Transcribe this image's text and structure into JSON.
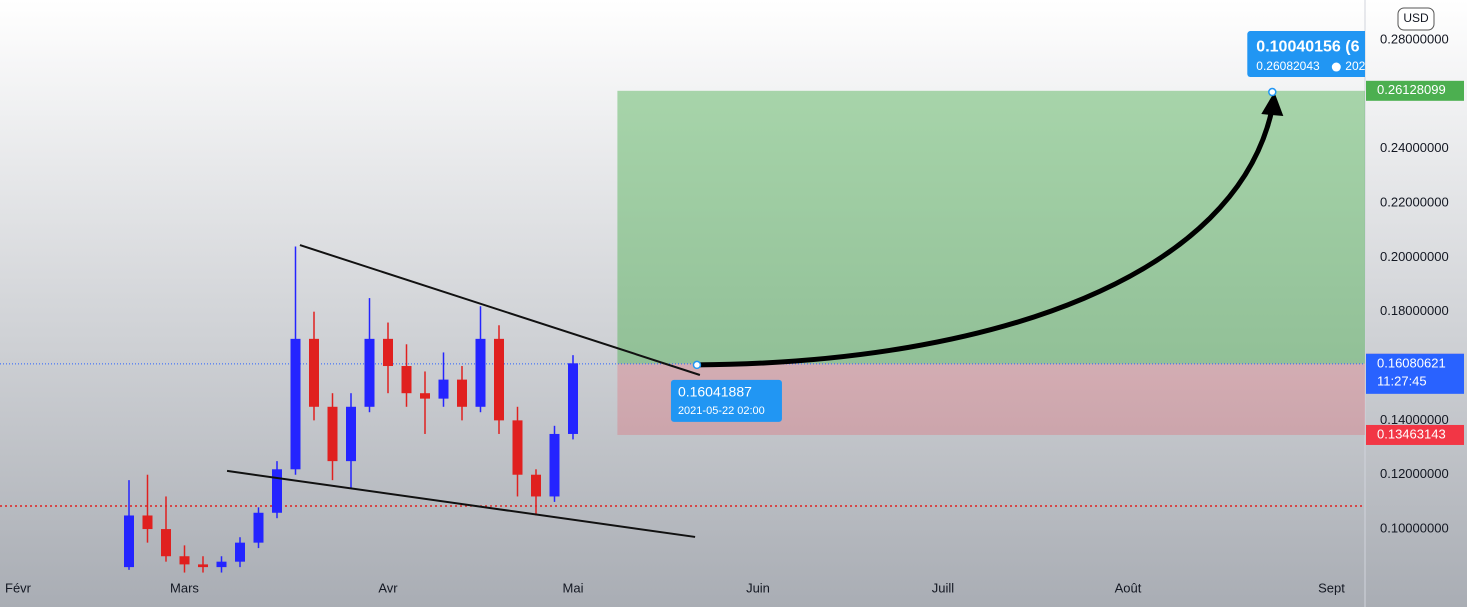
{
  "chart_data": {
    "type": "candlestick",
    "currency": "USD",
    "categories": [
      "Févr",
      null,
      null,
      null,
      null,
      null,
      null,
      null,
      null,
      "Mars",
      null,
      null,
      null,
      null,
      null,
      null,
      null,
      null,
      null,
      null,
      "Avr",
      null,
      null,
      null,
      null,
      null,
      null,
      null,
      null,
      null,
      "Mai",
      null,
      null,
      null,
      null,
      null,
      null,
      null,
      null,
      null,
      "Juin",
      null,
      null,
      null,
      null,
      null,
      null,
      null,
      null,
      null,
      "Juill",
      null,
      null,
      null,
      null,
      null,
      null,
      null,
      null,
      null,
      "Août",
      null,
      null,
      null,
      null,
      null,
      null,
      null,
      null,
      null,
      null,
      "Sept"
    ],
    "open": [
      null,
      null,
      null,
      null,
      null,
      null,
      0.086,
      0.105,
      0.1,
      0.09,
      0.087,
      0.086,
      0.088,
      0.095,
      0.106,
      0.122,
      0.17,
      0.145,
      0.125,
      0.145,
      0.17,
      0.16,
      0.15,
      0.148,
      0.155,
      0.145,
      0.17,
      0.14,
      0.12,
      0.112,
      0.135,
      null,
      null,
      null,
      null,
      null,
      null,
      null,
      null,
      null,
      null,
      null,
      null,
      null,
      null,
      null,
      null,
      null,
      null,
      null,
      null,
      null,
      null,
      null,
      null,
      null,
      null,
      null,
      null,
      null,
      null,
      null,
      null,
      null,
      null,
      null,
      null,
      null,
      null,
      null,
      null,
      null
    ],
    "high": [
      null,
      null,
      null,
      null,
      null,
      null,
      0.118,
      0.12,
      0.112,
      0.094,
      0.09,
      0.09,
      0.097,
      0.108,
      0.125,
      0.204,
      0.18,
      0.15,
      0.15,
      0.185,
      0.176,
      0.168,
      0.158,
      0.165,
      0.16,
      0.182,
      0.175,
      0.145,
      0.122,
      0.138,
      0.164,
      null,
      null,
      null,
      null,
      null,
      null,
      null,
      null,
      null,
      null,
      null,
      null,
      null,
      null,
      null,
      null,
      null,
      null,
      null,
      null,
      null,
      null,
      null,
      null,
      null,
      null,
      null,
      null,
      null,
      null,
      null,
      null,
      null,
      null,
      null,
      null,
      null,
      null,
      null,
      null,
      null
    ],
    "low": [
      null,
      null,
      null,
      null,
      null,
      null,
      0.085,
      0.095,
      0.088,
      0.084,
      0.084,
      0.084,
      0.086,
      0.093,
      0.104,
      0.12,
      0.14,
      0.118,
      0.115,
      0.143,
      0.15,
      0.145,
      0.135,
      0.145,
      0.14,
      0.143,
      0.135,
      0.112,
      0.105,
      0.11,
      0.133,
      null,
      null,
      null,
      null,
      null,
      null,
      null,
      null,
      null,
      null,
      null,
      null,
      null,
      null,
      null,
      null,
      null,
      null,
      null,
      null,
      null,
      null,
      null,
      null,
      null,
      null,
      null,
      null,
      null,
      null,
      null,
      null,
      null,
      null,
      null,
      null,
      null,
      null,
      null,
      null,
      null
    ],
    "close": [
      null,
      null,
      null,
      null,
      null,
      null,
      0.105,
      0.1,
      0.09,
      0.087,
      0.086,
      0.088,
      0.095,
      0.106,
      0.122,
      0.17,
      0.145,
      0.125,
      0.145,
      0.17,
      0.16,
      0.15,
      0.148,
      0.155,
      0.145,
      0.17,
      0.14,
      0.12,
      0.112,
      0.135,
      0.161,
      null,
      null,
      null,
      null,
      null,
      null,
      null,
      null,
      null,
      null,
      null,
      null,
      null,
      null,
      null,
      null,
      null,
      null,
      null,
      null,
      null,
      null,
      null,
      null,
      null,
      null,
      null,
      null,
      null,
      null,
      null,
      null,
      null,
      null,
      null,
      null,
      null,
      null,
      null,
      null,
      null
    ],
    "up_color": "#2424ff",
    "down_color": "#e0201f",
    "ylim": [
      0.0842,
      0.2947
    ],
    "yticks": [
      {
        "value": 0.1,
        "label": "0.10000000"
      },
      {
        "value": 0.12,
        "label": "0.12000000"
      },
      {
        "value": 0.14,
        "label": "0.14000000"
      },
      {
        "value": 0.18,
        "label": "0.18000000"
      },
      {
        "value": 0.2,
        "label": "0.20000000"
      },
      {
        "value": 0.22,
        "label": "0.22000000"
      },
      {
        "value": 0.24,
        "label": "0.24000000"
      },
      {
        "value": 0.28,
        "label": "0.28000000"
      }
    ],
    "trendlines": [
      {
        "x": [
          15.24,
          36.86
        ],
        "y": [
          0.2045,
          0.1567
        ]
      },
      {
        "x": [
          11.3,
          36.6
        ],
        "y": [
          0.1214,
          0.0971
        ]
      }
    ],
    "horizontal_line": {
      "value": 0.1085,
      "color": "#e0201f"
    },
    "last_price": {
      "value": 0.16080621,
      "countdown": "11:27:45",
      "color": "#2962ff"
    },
    "position": {
      "x_start": 32.4,
      "entry": 0.16087942,
      "target": 0.26128099,
      "stop": 0.13463143,
      "entry_color": "#9c7fd6",
      "target_color": "#4caf50",
      "stop_color": "#f23645"
    },
    "callouts": [
      {
        "x": 36.7,
        "price": 0.16041887,
        "date": "2021-05-22 02:00"
      },
      {
        "x": 67.8,
        "title": "0.10040156 (6",
        "price": 0.26082043,
        "date": "202"
      }
    ]
  }
}
